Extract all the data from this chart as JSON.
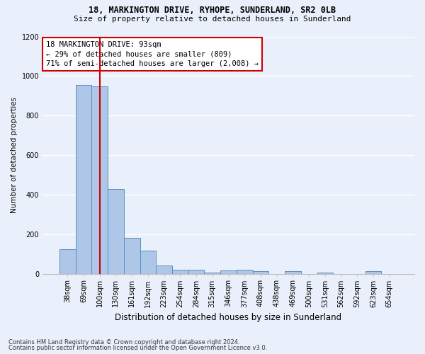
{
  "title1": "18, MARKINGTON DRIVE, RYHOPE, SUNDERLAND, SR2 0LB",
  "title2": "Size of property relative to detached houses in Sunderland",
  "xlabel": "Distribution of detached houses by size in Sunderland",
  "ylabel": "Number of detached properties",
  "categories": [
    "38sqm",
    "69sqm",
    "100sqm",
    "130sqm",
    "161sqm",
    "192sqm",
    "223sqm",
    "254sqm",
    "284sqm",
    "315sqm",
    "346sqm",
    "377sqm",
    "408sqm",
    "438sqm",
    "469sqm",
    "500sqm",
    "531sqm",
    "562sqm",
    "592sqm",
    "623sqm",
    "654sqm"
  ],
  "values": [
    125,
    955,
    948,
    428,
    182,
    118,
    43,
    22,
    20,
    5,
    18,
    20,
    13,
    0,
    13,
    0,
    5,
    0,
    0,
    13,
    0
  ],
  "bar_color": "#aec6e8",
  "bar_edge_color": "#5a8fc2",
  "red_line_x": 2.0,
  "annotation_text": "18 MARKINGTON DRIVE: 93sqm\n← 29% of detached houses are smaller (809)\n71% of semi-detached houses are larger (2,008) →",
  "annotation_box_color": "#ffffff",
  "annotation_box_edge": "#cc0000",
  "footnote1": "Contains HM Land Registry data © Crown copyright and database right 2024.",
  "footnote2": "Contains public sector information licensed under the Open Government Licence v3.0.",
  "ylim": [
    0,
    1200
  ],
  "yticks": [
    0,
    200,
    400,
    600,
    800,
    1000,
    1200
  ],
  "background_color": "#eaf0fb",
  "grid_color": "#ffffff",
  "red_line_color": "#cc0000",
  "title1_fontsize": 8.5,
  "title2_fontsize": 8.0,
  "xlabel_fontsize": 8.5,
  "ylabel_fontsize": 7.5,
  "tick_fontsize": 7.0,
  "annot_fontsize": 7.5,
  "footnote_fontsize": 6.0
}
